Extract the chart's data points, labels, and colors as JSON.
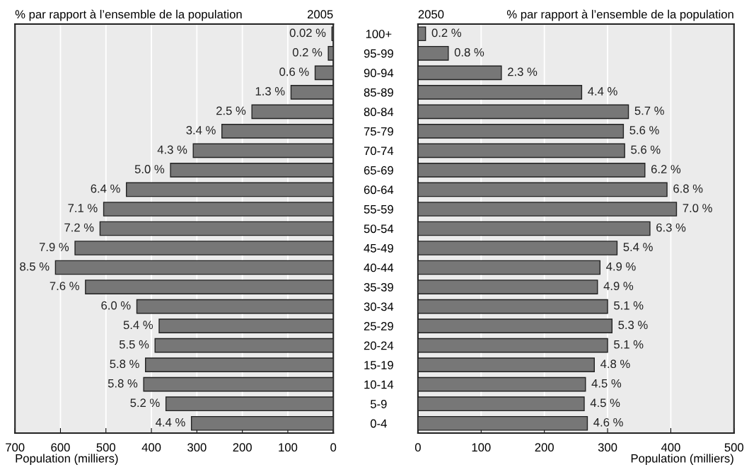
{
  "chart_data": [
    {
      "type": "bar",
      "orientation": "horizontal",
      "title": "2005",
      "subtitle": "% par rapport à l’ensemble de la population",
      "xlabel": "Population (milliers)",
      "categories": [
        "100+",
        "95-99",
        "90-94",
        "85-89",
        "80-84",
        "75-79",
        "70-74",
        "65-69",
        "60-64",
        "55-59",
        "50-54",
        "45-49",
        "40-44",
        "35-39",
        "30-34",
        "25-29",
        "20-24",
        "15-19",
        "10-14",
        "5-9",
        "0-4"
      ],
      "values": [
        3,
        11,
        40,
        93,
        179,
        245,
        308,
        358,
        455,
        505,
        513,
        568,
        611,
        545,
        432,
        383,
        392,
        413,
        417,
        368,
        312
      ],
      "annotations": [
        {
          "text": "0.02 %",
          "x": 3,
          "y": "100+"
        },
        {
          "text": "0.2 %",
          "x": 11,
          "y": "95-99"
        },
        {
          "text": "0.6 %",
          "x": 40,
          "y": "90-94"
        },
        {
          "text": "1.3 %",
          "x": 93,
          "y": "85-89"
        },
        {
          "text": "2.5 %",
          "x": 179,
          "y": "80-84"
        },
        {
          "text": "3.4 %",
          "x": 245,
          "y": "75-79"
        },
        {
          "text": "4.3 %",
          "x": 308,
          "y": "70-74"
        },
        {
          "text": "5.0 %",
          "x": 358,
          "y": "65-69"
        },
        {
          "text": "6.4 %",
          "x": 455,
          "y": "60-64"
        },
        {
          "text": "7.1 %",
          "x": 505,
          "y": "55-59"
        },
        {
          "text": "7.2 %",
          "x": 513,
          "y": "50-54"
        },
        {
          "text": "7.9 %",
          "x": 568,
          "y": "45-49"
        },
        {
          "text": "8.5 %",
          "x": 611,
          "y": "40-44"
        },
        {
          "text": "7.6 %",
          "x": 545,
          "y": "35-39"
        },
        {
          "text": "6.0 %",
          "x": 432,
          "y": "30-34"
        },
        {
          "text": "5.4 %",
          "x": 383,
          "y": "25-29"
        },
        {
          "text": "5.5 %",
          "x": 392,
          "y": "20-24"
        },
        {
          "text": "5.8 %",
          "x": 413,
          "y": "15-19"
        },
        {
          "text": "5.8 %",
          "x": 417,
          "y": "10-14"
        },
        {
          "text": "5.2 %",
          "x": 368,
          "y": "5-9"
        },
        {
          "text": "4.4 %",
          "x": 312,
          "y": "0-4"
        }
      ],
      "color": "#777777",
      "xlim": [
        700,
        0
      ],
      "xticks": [
        700,
        600,
        500,
        400,
        300,
        200,
        100,
        0
      ],
      "grid": "x",
      "tick_labels": "x"
    },
    {
      "type": "bar",
      "orientation": "horizontal",
      "title": "2050",
      "subtitle": "% par rapport à l’ensemble de la population",
      "xlabel": "Population (milliers)",
      "categories": [
        "100+",
        "95-99",
        "90-94",
        "85-89",
        "80-84",
        "75-79",
        "70-74",
        "65-69",
        "60-64",
        "55-59",
        "50-54",
        "45-49",
        "40-44",
        "35-39",
        "30-34",
        "25-29",
        "20-24",
        "15-19",
        "10-14",
        "5-9",
        "0-4"
      ],
      "values": [
        12,
        48,
        132,
        259,
        333,
        325,
        327,
        359,
        394,
        409,
        367,
        315,
        288,
        284,
        300,
        307,
        300,
        279,
        265,
        263,
        268
      ],
      "annotations": [
        {
          "text": "0.2 %",
          "x": 12,
          "y": "100+"
        },
        {
          "text": "0.8 %",
          "x": 48,
          "y": "95-99"
        },
        {
          "text": "2.3 %",
          "x": 132,
          "y": "90-94"
        },
        {
          "text": "4.4 %",
          "x": 259,
          "y": "85-89"
        },
        {
          "text": "5.7 %",
          "x": 333,
          "y": "80-84"
        },
        {
          "text": "5.6 %",
          "x": 325,
          "y": "75-79"
        },
        {
          "text": "5.6 %",
          "x": 327,
          "y": "70-74"
        },
        {
          "text": "6.2 %",
          "x": 359,
          "y": "65-69"
        },
        {
          "text": "6.8 %",
          "x": 394,
          "y": "60-64"
        },
        {
          "text": "7.0 %",
          "x": 409,
          "y": "55-59"
        },
        {
          "text": "6.3 %",
          "x": 367,
          "y": "50-54"
        },
        {
          "text": "5.4 %",
          "x": 315,
          "y": "45-49"
        },
        {
          "text": "4.9 %",
          "x": 288,
          "y": "40-44"
        },
        {
          "text": "4.9 %",
          "x": 284,
          "y": "35-39"
        },
        {
          "text": "5.1 %",
          "x": 300,
          "y": "30-34"
        },
        {
          "text": "5.3 %",
          "x": 307,
          "y": "25-29"
        },
        {
          "text": "5.1 %",
          "x": 300,
          "y": "20-24"
        },
        {
          "text": "4.8 %",
          "x": 279,
          "y": "15-19"
        },
        {
          "text": "4.5 %",
          "x": 265,
          "y": "10-14"
        },
        {
          "text": "4.5 %",
          "x": 263,
          "y": "5-9"
        },
        {
          "text": "4.6 %",
          "x": 268,
          "y": "0-4"
        }
      ],
      "color": "#777777",
      "xlim": [
        0,
        500
      ],
      "xticks": [
        0,
        100,
        200,
        300,
        400,
        500
      ],
      "grid": "x"
    }
  ]
}
